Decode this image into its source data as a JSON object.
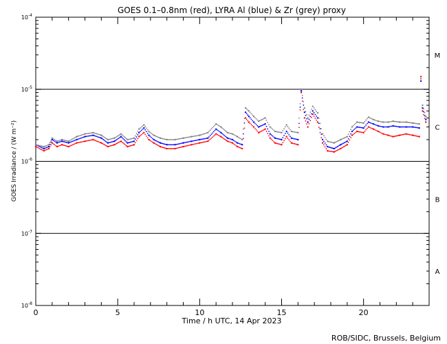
{
  "chart_data": {
    "type": "scatter",
    "title": "GOES 0.1–0.8nm (red), LYRA Al (blue) & Zr (grey) proxy",
    "xlabel": "Time / h UTC, 14 Apr 2023",
    "ylabel": "GOES Irradiance / (W m⁻²)",
    "credit": "ROB/SIDC, Brussels, Belgium",
    "xlim": [
      0,
      24
    ],
    "ylim": [
      1e-08,
      0.0001
    ],
    "y_scale": "log",
    "x_ticks": [
      0,
      5,
      10,
      15,
      20
    ],
    "y_ticks": [
      {
        "value": 1e-08,
        "base": "10",
        "exp": "-8"
      },
      {
        "value": 1e-07,
        "base": "10",
        "exp": "-7"
      },
      {
        "value": 1e-06,
        "base": "10",
        "exp": "-6"
      },
      {
        "value": 1e-05,
        "base": "10",
        "exp": "-5"
      },
      {
        "value": 0.0001,
        "base": "10",
        "exp": "-4"
      }
    ],
    "class_lines": [
      1e-07,
      1e-06,
      1e-05
    ],
    "class_labels": [
      {
        "label": "A",
        "value": 3e-08
      },
      {
        "label": "B",
        "value": 3e-07
      },
      {
        "label": "C",
        "value": 3e-06
      },
      {
        "label": "M",
        "value": 3e-05
      }
    ],
    "series": [
      {
        "color": "#ff0000",
        "x": [
          0,
          0.5,
          0.8,
          1.0,
          1.3,
          1.6,
          2.0,
          2.5,
          3.0,
          3.5,
          4.0,
          4.4,
          4.8,
          5.2,
          5.6,
          6.0,
          6.3,
          6.6,
          6.9,
          7.2,
          7.6,
          8.0,
          8.5,
          9.0,
          9.5,
          10.0,
          10.5,
          11.0,
          11.3,
          11.7,
          12.0,
          12.3,
          12.6,
          12.8,
          13.0,
          13.3,
          13.6,
          14.0,
          14.3,
          14.6,
          15.0,
          15.3,
          15.6,
          16.0,
          16.2,
          16.4,
          16.6,
          16.9,
          17.2,
          17.5,
          17.8,
          18.2,
          18.6,
          19.0,
          19.3,
          19.6,
          20.0,
          20.3,
          20.6,
          20.9,
          21.2,
          21.5,
          21.8,
          22.2,
          22.6,
          23.0,
          23.4,
          23.5,
          23.6,
          23.8
        ],
        "y": [
          1.6e-06,
          1.4e-06,
          1.5e-06,
          1.8e-06,
          1.6e-06,
          1.7e-06,
          1.6e-06,
          1.8e-06,
          1.9e-06,
          2e-06,
          1.8e-06,
          1.6e-06,
          1.7e-06,
          1.9e-06,
          1.6e-06,
          1.7e-06,
          2.2e-06,
          2.5e-06,
          2e-06,
          1.8e-06,
          1.6e-06,
          1.5e-06,
          1.5e-06,
          1.6e-06,
          1.7e-06,
          1.8e-06,
          1.9e-06,
          2.4e-06,
          2.2e-06,
          1.9e-06,
          1.8e-06,
          1.6e-06,
          1.5e-06,
          4e-06,
          3.5e-06,
          3e-06,
          2.5e-06,
          2.8e-06,
          2.1e-06,
          1.8e-06,
          1.7e-06,
          2.2e-06,
          1.8e-06,
          1.7e-06,
          9e-06,
          4e-06,
          3e-06,
          4.5e-06,
          3.5e-06,
          1.8e-06,
          1.4e-06,
          1.35e-06,
          1.5e-06,
          1.7e-06,
          2.3e-06,
          2.6e-06,
          2.5e-06,
          3e-06,
          2.8e-06,
          2.6e-06,
          2.4e-06,
          2.3e-06,
          2.2e-06,
          2.3e-06,
          2.4e-06,
          2.3e-06,
          2.2e-06,
          1.5e-05,
          5e-06,
          3.5e-06
        ]
      },
      {
        "color": "#0000ff",
        "x": [
          0,
          0.5,
          0.8,
          1.0,
          1.3,
          1.6,
          2.0,
          2.5,
          3.0,
          3.5,
          4.0,
          4.4,
          4.8,
          5.2,
          5.6,
          6.0,
          6.3,
          6.6,
          6.9,
          7.2,
          7.6,
          8.0,
          8.5,
          9.0,
          9.5,
          10.0,
          10.5,
          11.0,
          11.3,
          11.7,
          12.0,
          12.3,
          12.6,
          12.8,
          13.0,
          13.3,
          13.6,
          14.0,
          14.3,
          14.6,
          15.0,
          15.3,
          15.6,
          16.0,
          16.2,
          16.4,
          16.6,
          16.9,
          17.2,
          17.5,
          17.8,
          18.2,
          18.6,
          19.0,
          19.3,
          19.6,
          20.0,
          20.3,
          20.6,
          20.9,
          21.2,
          21.5,
          21.8,
          22.2,
          22.6,
          23.0,
          23.4,
          23.5,
          23.6,
          23.8
        ],
        "y": [
          1.7e-06,
          1.5e-06,
          1.6e-06,
          2e-06,
          1.8e-06,
          1.9e-06,
          1.8e-06,
          2e-06,
          2.2e-06,
          2.3e-06,
          2.1e-06,
          1.8e-06,
          1.9e-06,
          2.2e-06,
          1.8e-06,
          1.9e-06,
          2.5e-06,
          2.9e-06,
          2.3e-06,
          2e-06,
          1.8e-06,
          1.7e-06,
          1.7e-06,
          1.8e-06,
          1.9e-06,
          2e-06,
          2.1e-06,
          2.8e-06,
          2.5e-06,
          2.1e-06,
          2e-06,
          1.8e-06,
          1.7e-06,
          4.8e-06,
          4.2e-06,
          3.5e-06,
          3e-06,
          3.3e-06,
          2.4e-06,
          2.1e-06,
          2e-06,
          2.6e-06,
          2.1e-06,
          2e-06,
          9.5e-06,
          4.8e-06,
          3.5e-06,
          5e-06,
          4e-06,
          2e-06,
          1.6e-06,
          1.5e-06,
          1.7e-06,
          1.9e-06,
          2.6e-06,
          3e-06,
          2.9e-06,
          3.5e-06,
          3.3e-06,
          3.1e-06,
          3e-06,
          3e-06,
          3.1e-06,
          3e-06,
          3e-06,
          3e-06,
          2.9e-06,
          1.3e-05,
          5.5e-06,
          3.8e-06
        ]
      },
      {
        "color": "#808080",
        "x": [
          0,
          0.5,
          0.8,
          1.0,
          1.3,
          1.6,
          2.0,
          2.5,
          3.0,
          3.5,
          4.0,
          4.4,
          4.8,
          5.2,
          5.6,
          6.0,
          6.3,
          6.6,
          6.9,
          7.2,
          7.6,
          8.0,
          8.5,
          9.0,
          9.5,
          10.0,
          10.5,
          11.0,
          11.3,
          11.7,
          12.0,
          12.3,
          12.6,
          12.8,
          13.0,
          13.3,
          13.6,
          14.0,
          14.3,
          14.6,
          15.0,
          15.3,
          15.6,
          16.0,
          16.2,
          16.4,
          16.6,
          16.9,
          17.2,
          17.5,
          17.8,
          18.2,
          18.6,
          19.0,
          19.3,
          19.6,
          20.0,
          20.3,
          20.6,
          20.9,
          21.2,
          21.5,
          21.8,
          22.2,
          22.6,
          23.0,
          23.4,
          23.5,
          23.6,
          23.8
        ],
        "y": [
          1.7e-06,
          1.6e-06,
          1.7e-06,
          2.1e-06,
          1.9e-06,
          2e-06,
          1.9e-06,
          2.2e-06,
          2.4e-06,
          2.5e-06,
          2.3e-06,
          2e-06,
          2.1e-06,
          2.4e-06,
          2e-06,
          2.1e-06,
          2.8e-06,
          3.2e-06,
          2.6e-06,
          2.3e-06,
          2.1e-06,
          2e-06,
          2e-06,
          2.1e-06,
          2.2e-06,
          2.3e-06,
          2.5e-06,
          3.3e-06,
          3e-06,
          2.5e-06,
          2.4e-06,
          2.2e-06,
          2e-06,
          5.5e-06,
          5e-06,
          4.2e-06,
          3.6e-06,
          4e-06,
          3e-06,
          2.6e-06,
          2.5e-06,
          3.2e-06,
          2.6e-06,
          2.5e-06,
          1e-05,
          5.5e-06,
          4e-06,
          5.8e-06,
          4.7e-06,
          2.4e-06,
          1.9e-06,
          1.8e-06,
          2e-06,
          2.2e-06,
          3e-06,
          3.5e-06,
          3.4e-06,
          4.1e-06,
          3.8e-06,
          3.6e-06,
          3.5e-06,
          3.5e-06,
          3.6e-06,
          3.5e-06,
          3.5e-06,
          3.4e-06,
          3.3e-06,
          1.4e-05,
          6e-06,
          4.2e-06
        ]
      }
    ]
  }
}
